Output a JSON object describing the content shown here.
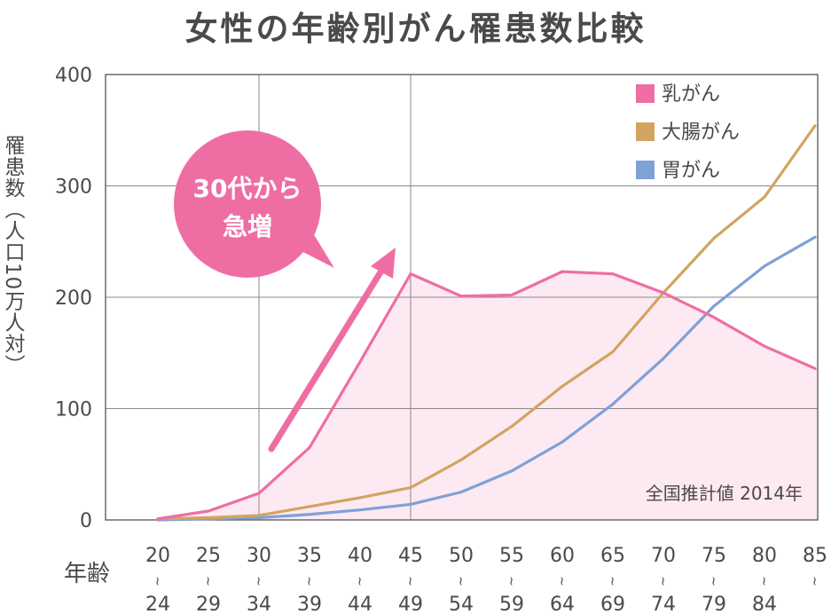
{
  "chart_data": {
    "type": "line",
    "title": "女性の年齢別がん罹患数比較",
    "ylabel": "罹患数（人口10万人対）",
    "xlabel": "年齢",
    "ylim": [
      0,
      400
    ],
    "yticks": [
      0,
      100,
      200,
      300,
      400
    ],
    "grid": true,
    "legend_position": "top-right",
    "x_start": [
      "20",
      "25",
      "30",
      "35",
      "40",
      "45",
      "50",
      "55",
      "60",
      "65",
      "70",
      "75",
      "80",
      "85"
    ],
    "x_end": [
      "24",
      "29",
      "34",
      "39",
      "44",
      "49",
      "54",
      "59",
      "64",
      "69",
      "74",
      "79",
      "84",
      ""
    ],
    "x_sep": "〜",
    "series": [
      {
        "name": "乳がん",
        "color": "#ee6ea3",
        "fill": "#fde9f2",
        "values": [
          1,
          8,
          24,
          65,
          142,
          221,
          201,
          202,
          223,
          221,
          204,
          182,
          156,
          136
        ]
      },
      {
        "name": "大腸がん",
        "color": "#d2a460",
        "values": [
          1,
          2,
          4,
          12,
          20,
          29,
          54,
          84,
          120,
          151,
          204,
          253,
          290,
          354
        ]
      },
      {
        "name": "胃がん",
        "color": "#7ea1d7",
        "values": [
          0,
          1,
          2,
          5,
          9,
          14,
          25,
          44,
          70,
          104,
          145,
          192,
          228,
          254
        ]
      }
    ],
    "note": "全国推計値 2014年",
    "callout": {
      "line1": "30代から",
      "line2": "急増",
      "color": "#ee6ea3"
    }
  }
}
